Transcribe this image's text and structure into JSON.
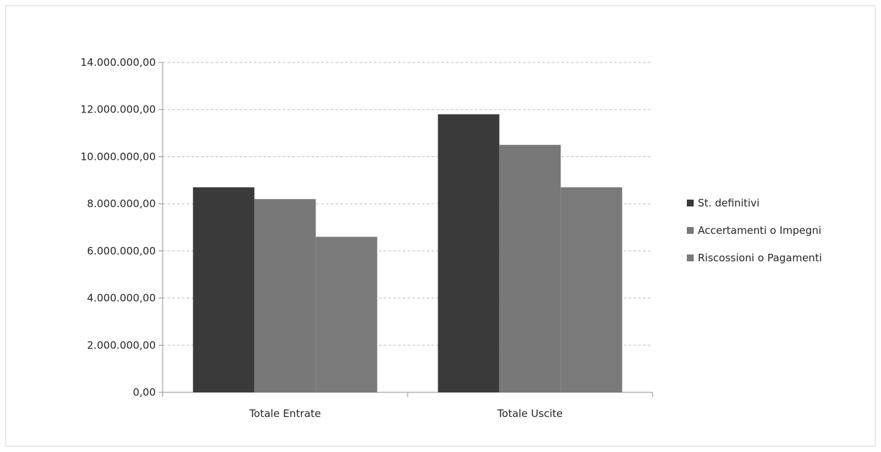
{
  "chart_data": {
    "type": "bar",
    "categories": [
      "Totale Entrate",
      "Totale Uscite"
    ],
    "series": [
      {
        "name": "St. definitivi",
        "values": [
          8700000,
          11800000
        ],
        "color": "#3a3a3a"
      },
      {
        "name": "Accertamenti o Impegni",
        "values": [
          8200000,
          10500000
        ],
        "color": "#787878"
      },
      {
        "name": "Riscossioni o Pagamenti",
        "values": [
          6600000,
          8700000
        ],
        "color": "#7a7a7a"
      }
    ],
    "ylim": [
      0,
      14000000
    ],
    "yticks": [
      0,
      2000000,
      4000000,
      6000000,
      8000000,
      10000000,
      12000000,
      14000000
    ],
    "ytick_labels": [
      "0,00",
      "2.000.000,00",
      "4.000.000,00",
      "6.000.000,00",
      "8.000.000,00",
      "10.000.000,00",
      "12.000.000,00",
      "14.000.000,00"
    ],
    "grid": true,
    "legend_position": "right",
    "title": "",
    "xlabel": "",
    "ylabel": ""
  }
}
